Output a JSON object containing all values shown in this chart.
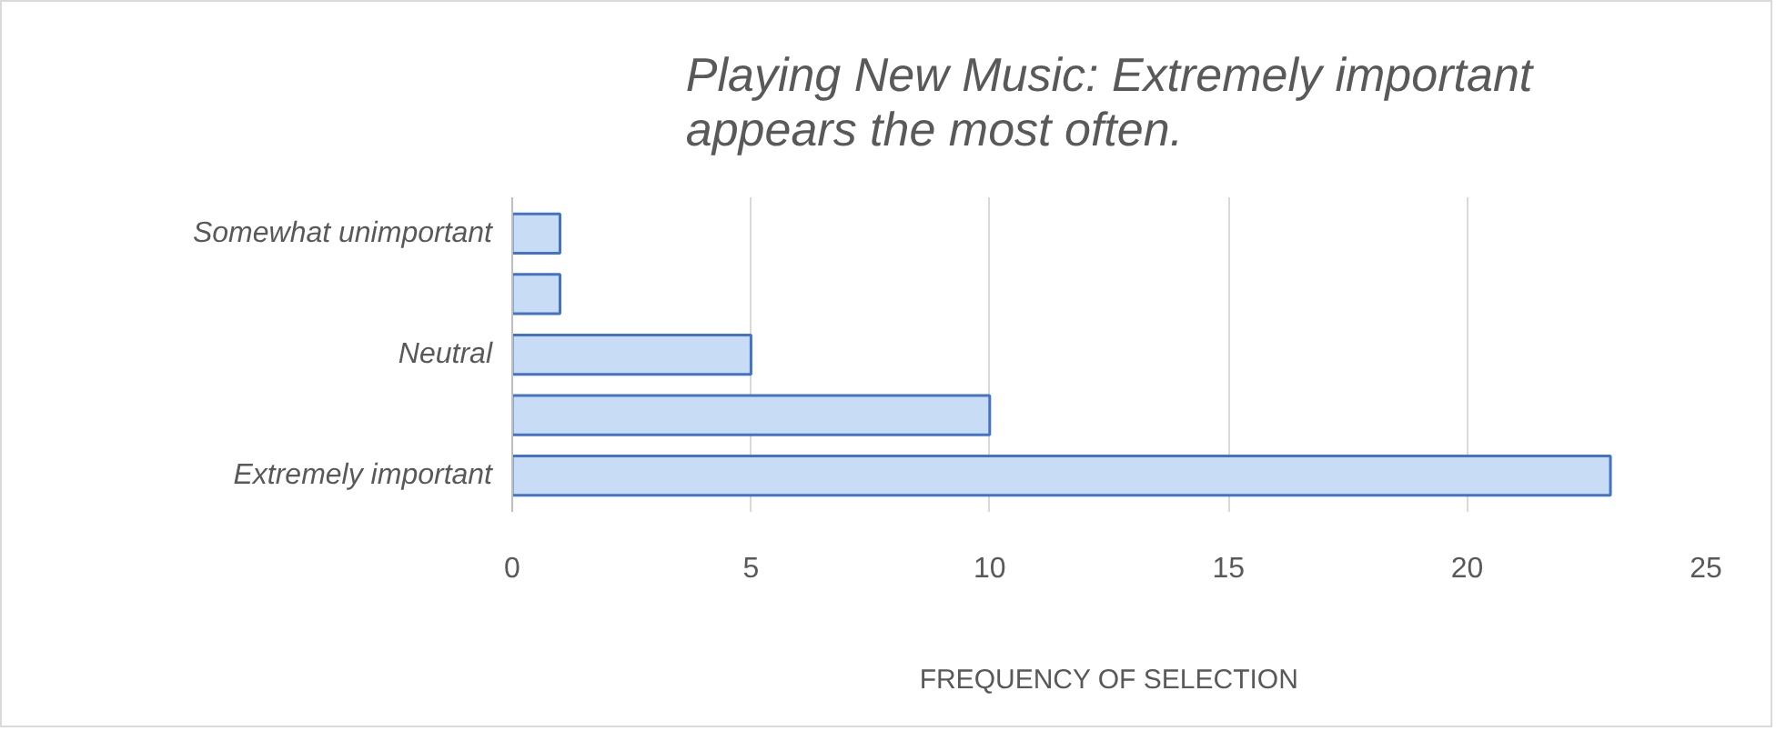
{
  "chart_data": {
    "type": "bar",
    "orientation": "horizontal",
    "title": "Playing New Music: Extremely important appears the most often.",
    "xlabel": "FREQUENCY OF SELECTION",
    "categories": [
      "Somewhat unimportant",
      null,
      "Neutral",
      null,
      "Extremely important"
    ],
    "values": [
      1,
      1,
      5,
      10,
      23
    ],
    "color": "#c9dcf5",
    "xlim": [
      0,
      25
    ],
    "xticks": [
      0,
      5,
      10,
      15,
      20,
      25
    ],
    "grid": "x"
  }
}
